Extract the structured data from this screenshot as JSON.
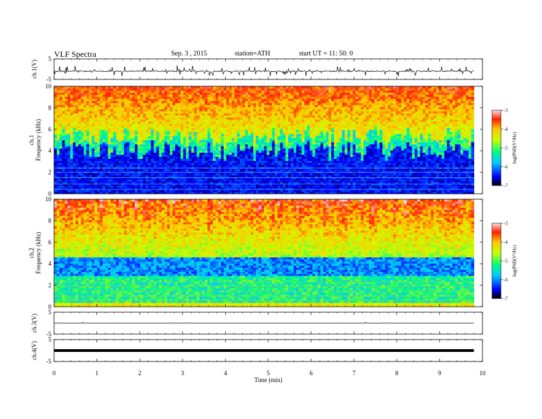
{
  "header": {
    "title": "VLF  Spectra",
    "date": "Sep. 3  , 2015",
    "station": "station=ATH",
    "start": "start  UT  =    11: 50: 0"
  },
  "colors": {
    "spectrogram_low": "#000060",
    "spectrogram_high": "#ff2000",
    "waveform": "#000000"
  },
  "chart_data": [
    {
      "type": "line",
      "name": "ch1-waveform",
      "ylabel": "ch.1(V)",
      "ylim": [
        -5,
        5
      ],
      "yticks": [
        "5",
        "-5"
      ],
      "x_range_min": [
        0,
        9.8
      ],
      "baseline": -1.0,
      "spike_amplitude": 1.2
    },
    {
      "type": "heatmap",
      "name": "ch1-spectrogram",
      "ylabel_channel": "ch.1",
      "ylabel": "Frequency  (kHz)",
      "ylim": [
        0,
        10
      ],
      "yticks": [
        "0",
        "2",
        "4",
        "6",
        "8",
        "10"
      ],
      "x_range_min": [
        0,
        9.8
      ],
      "colorbar": {
        "label": "log(PSD(V²/Hz)",
        "range": [
          -7,
          -3
        ],
        "ticks": [
          "-3",
          "-4",
          "-5",
          "-6",
          "-7"
        ]
      },
      "profile": {
        "noise_floor_top_khz": 4.0,
        "intense_band_khz": [
          6,
          10
        ]
      }
    },
    {
      "type": "heatmap",
      "name": "ch2-spectrogram",
      "ylabel_channel": "ch.2",
      "ylabel": "Frequency  (kHz)",
      "ylim": [
        0,
        10
      ],
      "yticks": [
        "0",
        "2",
        "4",
        "6",
        "8",
        "10"
      ],
      "x_range_min": [
        0,
        9.8
      ],
      "colorbar": {
        "label": "log(PSD(V²/Hz)",
        "range": [
          -7,
          -3
        ],
        "ticks": [
          "-3",
          "-4",
          "-5",
          "-6",
          "-7"
        ]
      },
      "profile": {
        "blue_band_khz": [
          2.8,
          4.6
        ],
        "intense_band_khz": [
          6,
          10
        ]
      }
    },
    {
      "type": "line",
      "name": "ch3-waveform",
      "ylabel": "ch.3(V)",
      "ylim": [
        -5,
        5
      ],
      "yticks": [
        "5",
        "-5"
      ],
      "x_range_min": [
        0,
        9.8
      ],
      "baseline": 0.0
    },
    {
      "type": "line",
      "name": "ch4-waveform",
      "ylabel": "ch.4(V)",
      "ylim": [
        -5,
        5
      ],
      "yticks": [
        "5",
        "-5"
      ],
      "x_range_min": [
        0,
        9.8
      ],
      "baseline": 0.0
    }
  ],
  "time_axis": {
    "label": "Time  (min)",
    "xlim": [
      0,
      10
    ],
    "ticks": [
      "0",
      "1",
      "2",
      "3",
      "4",
      "5",
      "6",
      "7",
      "8",
      "9",
      "10"
    ]
  }
}
